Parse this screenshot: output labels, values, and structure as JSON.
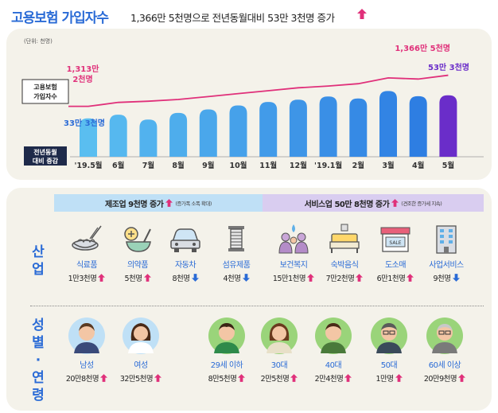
{
  "header": {
    "title": "고용보험 가입자수",
    "subtitle": "1,366만 5천명으로 전년동월대비 53만 3천명 증가"
  },
  "colors": {
    "blue": "#2a6bd6",
    "pink": "#e0307a",
    "purple": "#6a2dc9",
    "up": "#e0307a",
    "down": "#2a6bd6"
  },
  "chart_data": {
    "type": "bar",
    "unit_note": "(단위: 천명)",
    "categories": [
      "'19.5월",
      "6월",
      "7월",
      "8월",
      "9월",
      "10월",
      "11월",
      "12월",
      "'19.1월",
      "2월",
      "3월",
      "4월",
      "5월"
    ],
    "series": [
      {
        "name": "전년동월 대비 증감",
        "values": [
          333,
          365,
          322,
          380,
          410,
          445,
          475,
          495,
          522,
          505,
          570,
          525,
          533
        ]
      },
      {
        "name": "고용보험 가입자수",
        "values": [
          13132,
          13200,
          13220,
          13250,
          13300,
          13350,
          13400,
          13450,
          13480,
          13520,
          13620,
          13600,
          13665
        ]
      }
    ],
    "row_labels": {
      "line": "고용보험 가입자수",
      "bars": "전년동월 대비 증감"
    },
    "annotations": {
      "line_first": "1,313만 2천명",
      "line_last": "1,366만 5천명",
      "bar_first": "33만 3천명",
      "bar_last": "53만 3천명"
    }
  },
  "industry": {
    "label": "산업",
    "manufacturing_head": {
      "title": "제조업 9천명 증가",
      "note": "(증가폭 소폭 확대)"
    },
    "service_head": {
      "title": "서비스업 50만 8천명 증가",
      "note": "(견조한 증가세 지속)"
    },
    "items": [
      {
        "name": "식료품",
        "value": "1만3천명",
        "dir": "up",
        "icon": "food-bowl-icon"
      },
      {
        "name": "의약품",
        "value": "5천명",
        "dir": "up",
        "icon": "mortar-pestle-icon"
      },
      {
        "name": "자동차",
        "value": "8천명",
        "dir": "down",
        "icon": "car-icon"
      },
      {
        "name": "섬유제품",
        "value": "4천명",
        "dir": "down",
        "icon": "thread-spool-icon"
      },
      {
        "name": "보건복지",
        "value": "15만1천명",
        "dir": "up",
        "icon": "family-care-icon"
      },
      {
        "name": "숙박음식",
        "value": "7만2천명",
        "dir": "up",
        "icon": "bed-icon"
      },
      {
        "name": "도소매",
        "value": "6만1천명",
        "dir": "up",
        "icon": "store-sale-icon"
      },
      {
        "name": "사업서비스",
        "value": "9천명",
        "dir": "down",
        "icon": "office-building-icon"
      }
    ]
  },
  "demographics": {
    "label": "성별·연령",
    "items": [
      {
        "name": "남성",
        "value": "20만8천명",
        "dir": "up",
        "icon": "man-avatar-icon"
      },
      {
        "name": "여성",
        "value": "32만5천명",
        "dir": "up",
        "icon": "woman-avatar-icon"
      },
      {
        "name": "29세 이하",
        "value": "8만5천명",
        "dir": "up",
        "icon": "young-man-avatar-icon"
      },
      {
        "name": "30대",
        "value": "2만5천명",
        "dir": "up",
        "icon": "woman-30s-avatar-icon"
      },
      {
        "name": "40대",
        "value": "2만4천명",
        "dir": "up",
        "icon": "man-40s-avatar-icon"
      },
      {
        "name": "50대",
        "value": "1만명",
        "dir": "up",
        "icon": "man-50s-avatar-icon"
      },
      {
        "name": "60세 이상",
        "value": "20만9천명",
        "dir": "up",
        "icon": "senior-avatar-icon"
      }
    ]
  }
}
